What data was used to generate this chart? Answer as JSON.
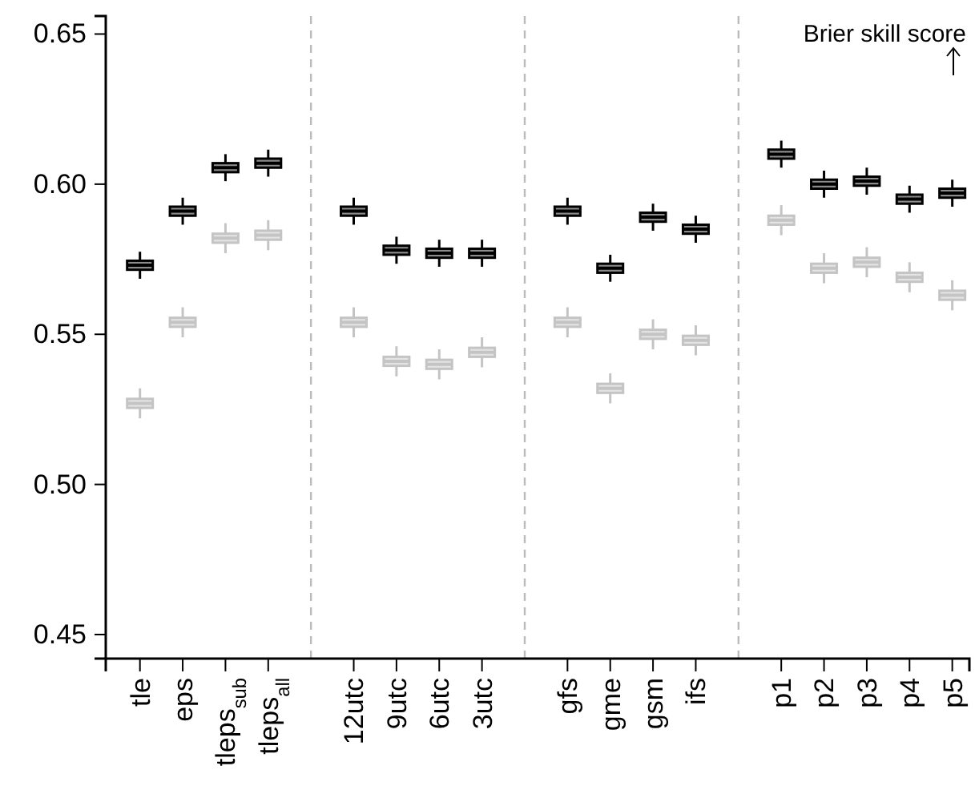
{
  "chart_data": {
    "type": "box",
    "categories": [
      "tle",
      "eps",
      "tleps$_{sub}$",
      "tleps$_{all}$",
      null,
      "12utc",
      "9utc",
      "6utc",
      "3utc",
      null,
      "gfs",
      "gme",
      "gsm",
      "ifs",
      null,
      "p1",
      "p2",
      "p3",
      "p4",
      "p5"
    ],
    "ylim": [
      0.442,
      0.656
    ],
    "yticks": [
      {
        "value": 0.45,
        "label": "0.45"
      },
      {
        "value": 0.5,
        "label": "0.50"
      },
      {
        "value": 0.55,
        "label": "0.55"
      },
      {
        "value": 0.6,
        "label": "0.60"
      },
      {
        "value": 0.65,
        "label": "0.65"
      }
    ],
    "grid": "x",
    "annotations": [
      "Brier skill score"
    ],
    "series": [
      {
        "color": "#c4c4c4",
        "boxes": [
          {
            "low": 0.522,
            "q1": 0.5255,
            "median": 0.527,
            "q3": 0.5285,
            "high": 0.532
          },
          {
            "low": 0.549,
            "q1": 0.5525,
            "median": 0.554,
            "q3": 0.5555,
            "high": 0.559
          },
          {
            "low": 0.577,
            "q1": 0.5805,
            "median": 0.582,
            "q3": 0.5835,
            "high": 0.587
          },
          {
            "low": 0.578,
            "q1": 0.5815,
            "median": 0.583,
            "q3": 0.5845,
            "high": 0.588
          },
          null,
          {
            "low": 0.549,
            "q1": 0.5525,
            "median": 0.554,
            "q3": 0.5555,
            "high": 0.559
          },
          {
            "low": 0.536,
            "q1": 0.5395,
            "median": 0.541,
            "q3": 0.5425,
            "high": 0.546
          },
          {
            "low": 0.535,
            "q1": 0.5385,
            "median": 0.54,
            "q3": 0.5415,
            "high": 0.545
          },
          {
            "low": 0.539,
            "q1": 0.5425,
            "median": 0.544,
            "q3": 0.5455,
            "high": 0.549
          },
          null,
          {
            "low": 0.549,
            "q1": 0.5525,
            "median": 0.554,
            "q3": 0.5555,
            "high": 0.559
          },
          {
            "low": 0.527,
            "q1": 0.5305,
            "median": 0.532,
            "q3": 0.5335,
            "high": 0.537
          },
          {
            "low": 0.545,
            "q1": 0.5485,
            "median": 0.55,
            "q3": 0.5515,
            "high": 0.555
          },
          {
            "low": 0.543,
            "q1": 0.5465,
            "median": 0.548,
            "q3": 0.5495,
            "high": 0.553
          },
          null,
          {
            "low": 0.583,
            "q1": 0.5865,
            "median": 0.588,
            "q3": 0.5895,
            "high": 0.593
          },
          {
            "low": 0.567,
            "q1": 0.5705,
            "median": 0.572,
            "q3": 0.5735,
            "high": 0.577
          },
          {
            "low": 0.569,
            "q1": 0.5725,
            "median": 0.574,
            "q3": 0.5755,
            "high": 0.579
          },
          {
            "low": 0.564,
            "q1": 0.5675,
            "median": 0.569,
            "q3": 0.5705,
            "high": 0.574
          },
          {
            "low": 0.558,
            "q1": 0.5615,
            "median": 0.563,
            "q3": 0.5645,
            "high": 0.568
          }
        ]
      },
      {
        "color": "#000000",
        "boxes": [
          {
            "low": 0.5685,
            "q1": 0.5715,
            "median": 0.573,
            "q3": 0.5745,
            "high": 0.5775
          },
          {
            "low": 0.5865,
            "q1": 0.5895,
            "median": 0.591,
            "q3": 0.5925,
            "high": 0.5955
          },
          {
            "low": 0.601,
            "q1": 0.604,
            "median": 0.6055,
            "q3": 0.607,
            "high": 0.61
          },
          {
            "low": 0.6025,
            "q1": 0.6055,
            "median": 0.607,
            "q3": 0.6085,
            "high": 0.6115
          },
          null,
          {
            "low": 0.5865,
            "q1": 0.5895,
            "median": 0.591,
            "q3": 0.5925,
            "high": 0.5955
          },
          {
            "low": 0.5735,
            "q1": 0.5765,
            "median": 0.578,
            "q3": 0.5795,
            "high": 0.5825
          },
          {
            "low": 0.5725,
            "q1": 0.5755,
            "median": 0.577,
            "q3": 0.5785,
            "high": 0.5815
          },
          {
            "low": 0.5725,
            "q1": 0.5755,
            "median": 0.577,
            "q3": 0.5785,
            "high": 0.5815
          },
          null,
          {
            "low": 0.5865,
            "q1": 0.5895,
            "median": 0.591,
            "q3": 0.5925,
            "high": 0.5955
          },
          {
            "low": 0.5675,
            "q1": 0.5705,
            "median": 0.572,
            "q3": 0.5735,
            "high": 0.5765
          },
          {
            "low": 0.5845,
            "q1": 0.5875,
            "median": 0.589,
            "q3": 0.5905,
            "high": 0.5935
          },
          {
            "low": 0.5805,
            "q1": 0.5835,
            "median": 0.585,
            "q3": 0.5865,
            "high": 0.5895
          },
          null,
          {
            "low": 0.6055,
            "q1": 0.6085,
            "median": 0.61,
            "q3": 0.6115,
            "high": 0.6145
          },
          {
            "low": 0.5955,
            "q1": 0.5985,
            "median": 0.6,
            "q3": 0.6015,
            "high": 0.6045
          },
          {
            "low": 0.5965,
            "q1": 0.5995,
            "median": 0.601,
            "q3": 0.6025,
            "high": 0.6055
          },
          {
            "low": 0.5905,
            "q1": 0.5935,
            "median": 0.595,
            "q3": 0.5965,
            "high": 0.5995
          },
          {
            "low": 0.5925,
            "q1": 0.5955,
            "median": 0.597,
            "q3": 0.5985,
            "high": 0.6015
          }
        ]
      }
    ]
  }
}
